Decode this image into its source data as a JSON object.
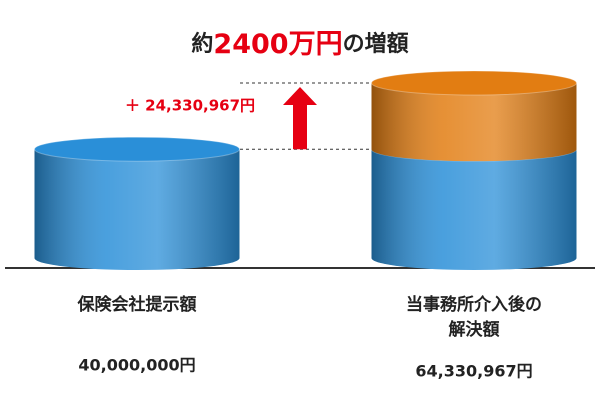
{
  "chart_data": {
    "type": "cylinder-stack",
    "title_parts": [
      "約",
      "2400万円",
      "の増額"
    ],
    "categories": [
      [
        "保険会社提示額"
      ],
      [
        "当事務所介入後の",
        "解決額"
      ]
    ],
    "series": [
      {
        "color": "#2a8fd8",
        "values": [
          40000000,
          40000000
        ]
      },
      {
        "color": "#e27d12",
        "values": [
          null,
          24330967
        ],
        "value_labels": [
          null,
          "＋ 24,330,967円"
        ]
      }
    ],
    "totals": [
      40000000,
      64330967
    ],
    "total_labels": [
      "40,000,000円",
      "64,330,967円"
    ],
    "accent_color": "#e60012"
  }
}
